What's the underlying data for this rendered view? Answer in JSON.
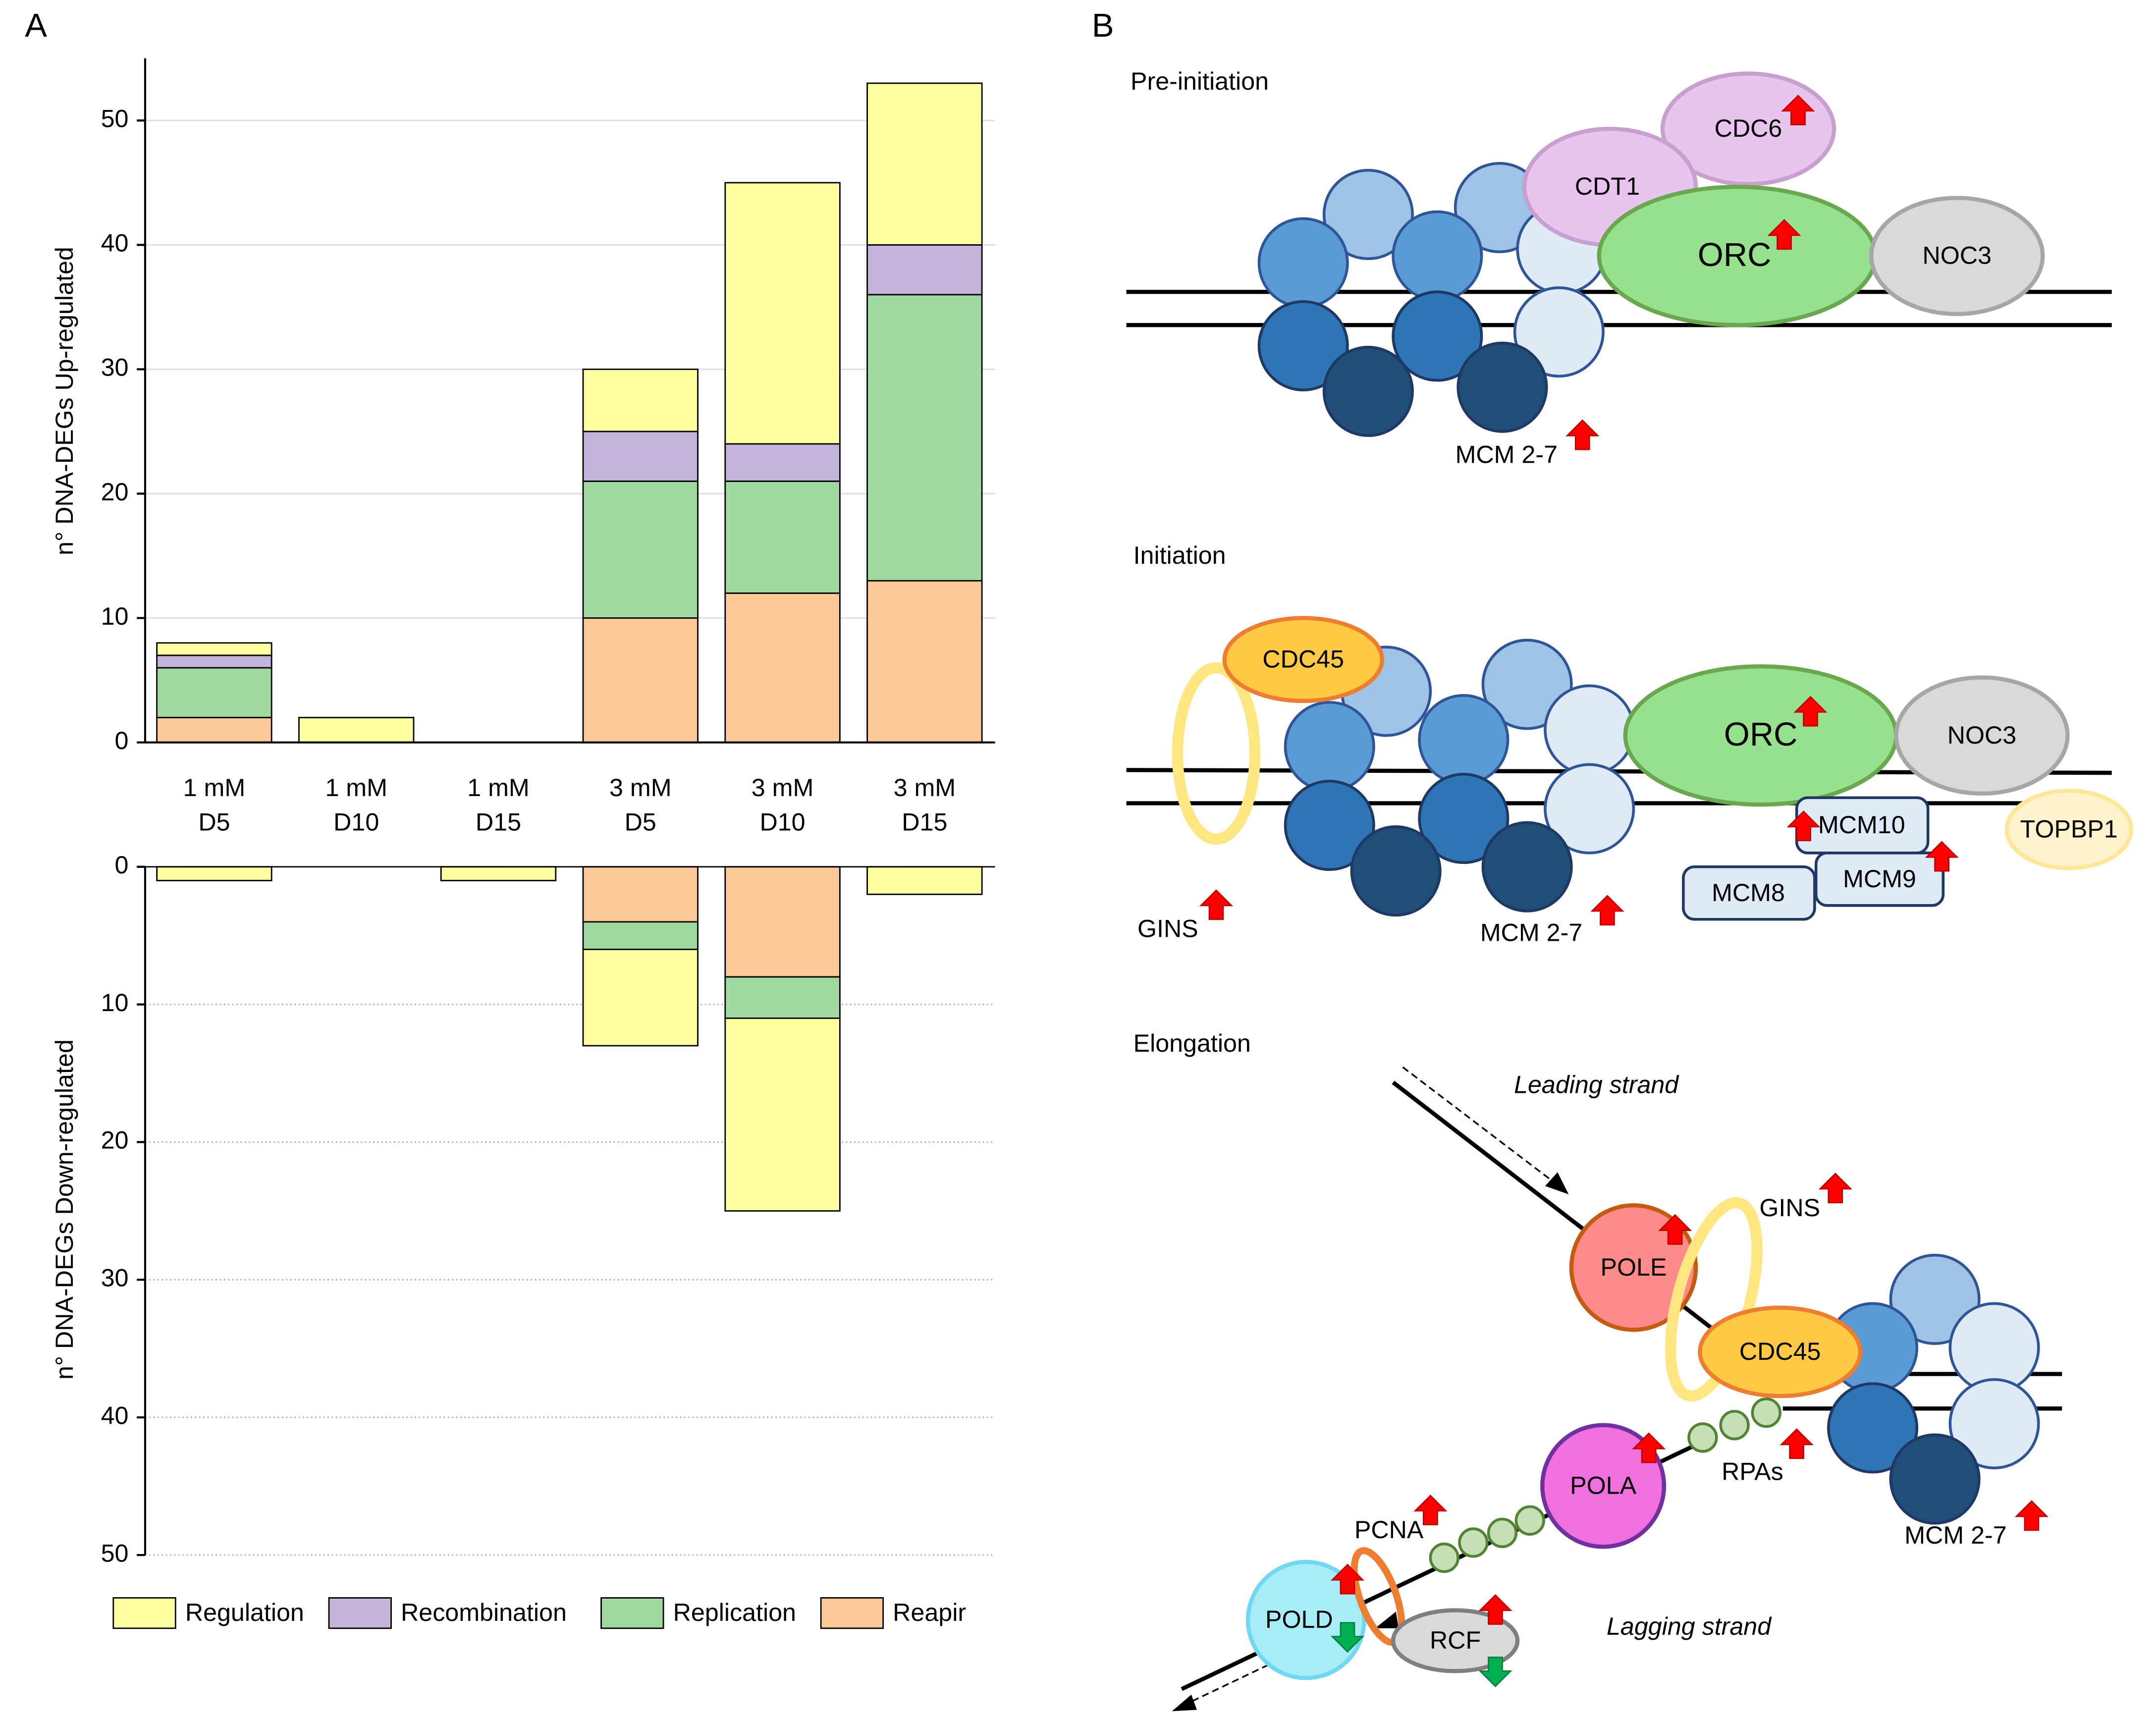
{
  "chart_data": {
    "type": "bar",
    "label": "A",
    "categories": [
      [
        "1 mM",
        "D5"
      ],
      [
        "1 mM",
        "D10"
      ],
      [
        "1 mM",
        "D15"
      ],
      [
        "3 mM",
        "D5"
      ],
      [
        "3 mM",
        "D10"
      ],
      [
        "3 mM",
        "D15"
      ]
    ],
    "series": [
      {
        "name": "Regulation",
        "color": "#ffff9f",
        "values": [
          1,
          2,
          0,
          5,
          21,
          13
        ],
        "values_down": [
          1,
          0,
          1,
          7,
          14,
          2
        ]
      },
      {
        "name": "Recombination",
        "color": "#c3b5da",
        "values": [
          1,
          0,
          0,
          4,
          3,
          4
        ],
        "values_down": [
          0,
          0,
          0,
          0,
          0,
          0
        ]
      },
      {
        "name": "Replication",
        "color": "#a1d9a0",
        "values": [
          4,
          0,
          0,
          11,
          9,
          23
        ],
        "values_down": [
          0,
          0,
          0,
          2,
          3,
          0
        ]
      },
      {
        "name": "Reapir",
        "color": "#fbc898",
        "values": [
          2,
          0,
          0,
          10,
          12,
          13
        ],
        "values_down": [
          0,
          0,
          0,
          4,
          8,
          0
        ]
      }
    ],
    "ylabel": "n° DNA-DEGs Up-regulated",
    "ylim": [
      0,
      55
    ],
    "yticks": [
      0,
      10,
      20,
      30,
      40,
      50
    ],
    "ylabel_down": "n° DNA-DEGs Down-regulated",
    "ylim_down": [
      0,
      50
    ],
    "yticks_down": [
      0,
      10,
      20,
      30,
      40,
      50
    ],
    "grid": true
  },
  "diagram": {
    "label": "B",
    "pre_initiation": {
      "title": "Pre-initiation",
      "cdc6": "CDC6",
      "cdt1": "CDT1",
      "orc": "ORC",
      "noc3": "NOC3",
      "mcm": "MCM 2-7"
    },
    "initiation": {
      "title": "Initiation",
      "cdc45": "CDC45",
      "orc": "ORC",
      "noc3": "NOC3",
      "mcm10": "MCM10",
      "mcm8": "MCM8",
      "mcm9": "MCM9",
      "topbp1": "TOPBP1",
      "gins": "GINS",
      "mcm": "MCM 2-7"
    },
    "elongation": {
      "title": "Elongation",
      "leading": "Leading strand",
      "gins": "GINS",
      "pole": "POLE",
      "cdc45": "CDC45",
      "rpas": "RPAs",
      "pola": "POLA",
      "mcm": "MCM 2-7",
      "pcna": "PCNA",
      "pold": "POLD",
      "rcf": "RCF",
      "lagging": "Lagging strand"
    }
  }
}
